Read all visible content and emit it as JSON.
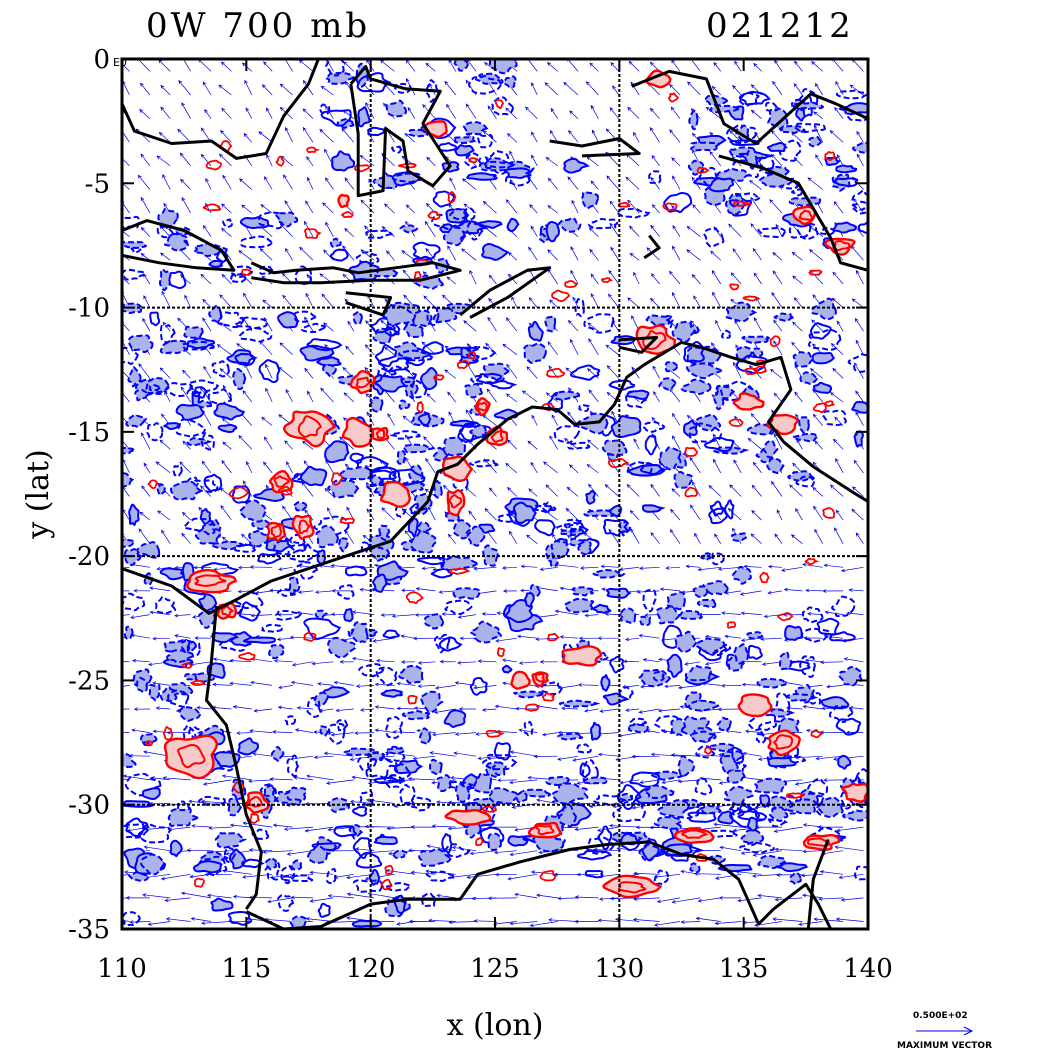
{
  "title_left": "0W 700 mb",
  "title_right": "021212",
  "x_axis": {
    "label": "x (lon)",
    "ticks": [
      "110",
      "115",
      "120",
      "125",
      "130",
      "135",
      "140"
    ],
    "range": [
      110,
      140
    ]
  },
  "y_axis": {
    "label": "y (lat)",
    "ticks": [
      "0",
      "-5",
      "-10",
      "-15",
      "-20",
      "-25",
      "-30",
      "-35"
    ],
    "range": [
      -35,
      0
    ]
  },
  "grid": {
    "visible": true,
    "lon_lines": [
      120,
      130
    ],
    "lat_lines": [
      -10,
      -20,
      -30
    ]
  },
  "legend": {
    "scale_value": "0.500E+02",
    "scale_caption": "MAXIMUM VECTOR"
  },
  "colors": {
    "positive_contour": "#ff0000",
    "positive_fill": "#f7c9c9",
    "negative_contour": "#0000ff",
    "negative_fill": "#aab3ec",
    "vector": "#0000dd",
    "coastline": "#000000"
  },
  "corner_mark": "E0"
}
